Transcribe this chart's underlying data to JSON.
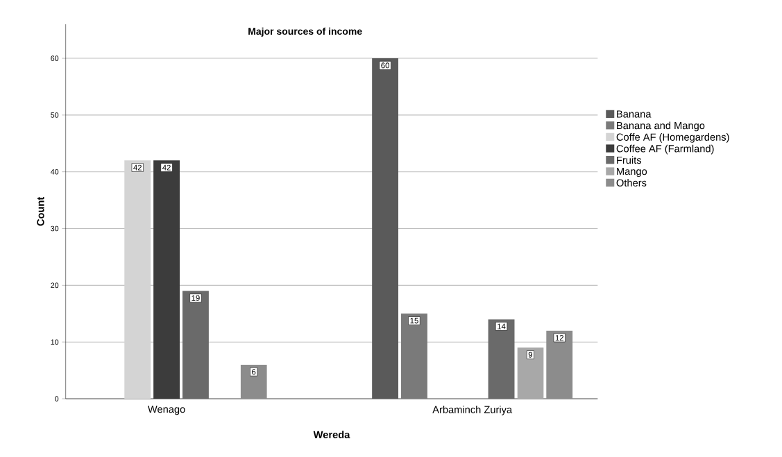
{
  "chart_data": {
    "type": "bar",
    "title": "Major sources of income",
    "xlabel": "Wereda",
    "ylabel": "Count",
    "categories": [
      "Wenago",
      "Arbaminch Zuriya"
    ],
    "series": [
      {
        "name": "Banana",
        "color": "#5a5a5a",
        "values": [
          null,
          60
        ]
      },
      {
        "name": "Banana and Mango",
        "color": "#7a7a7a",
        "values": [
          null,
          15
        ]
      },
      {
        "name": "Coffe AF (Homegardens)",
        "color": "#d4d4d4",
        "values": [
          42,
          null
        ]
      },
      {
        "name": "Coffee AF (Farmland)",
        "color": "#3c3c3c",
        "values": [
          42,
          null
        ]
      },
      {
        "name": "Fruits",
        "color": "#6a6a6a",
        "values": [
          19,
          14
        ]
      },
      {
        "name": "Mango",
        "color": "#a8a8a8",
        "values": [
          null,
          9
        ]
      },
      {
        "name": "Others",
        "color": "#8c8c8c",
        "values": [
          6,
          12
        ]
      }
    ],
    "ylim": [
      0,
      66
    ],
    "yticks": [
      0,
      10,
      20,
      30,
      40,
      50,
      60
    ],
    "grid": "y",
    "legend": "right",
    "data_labels": true
  }
}
